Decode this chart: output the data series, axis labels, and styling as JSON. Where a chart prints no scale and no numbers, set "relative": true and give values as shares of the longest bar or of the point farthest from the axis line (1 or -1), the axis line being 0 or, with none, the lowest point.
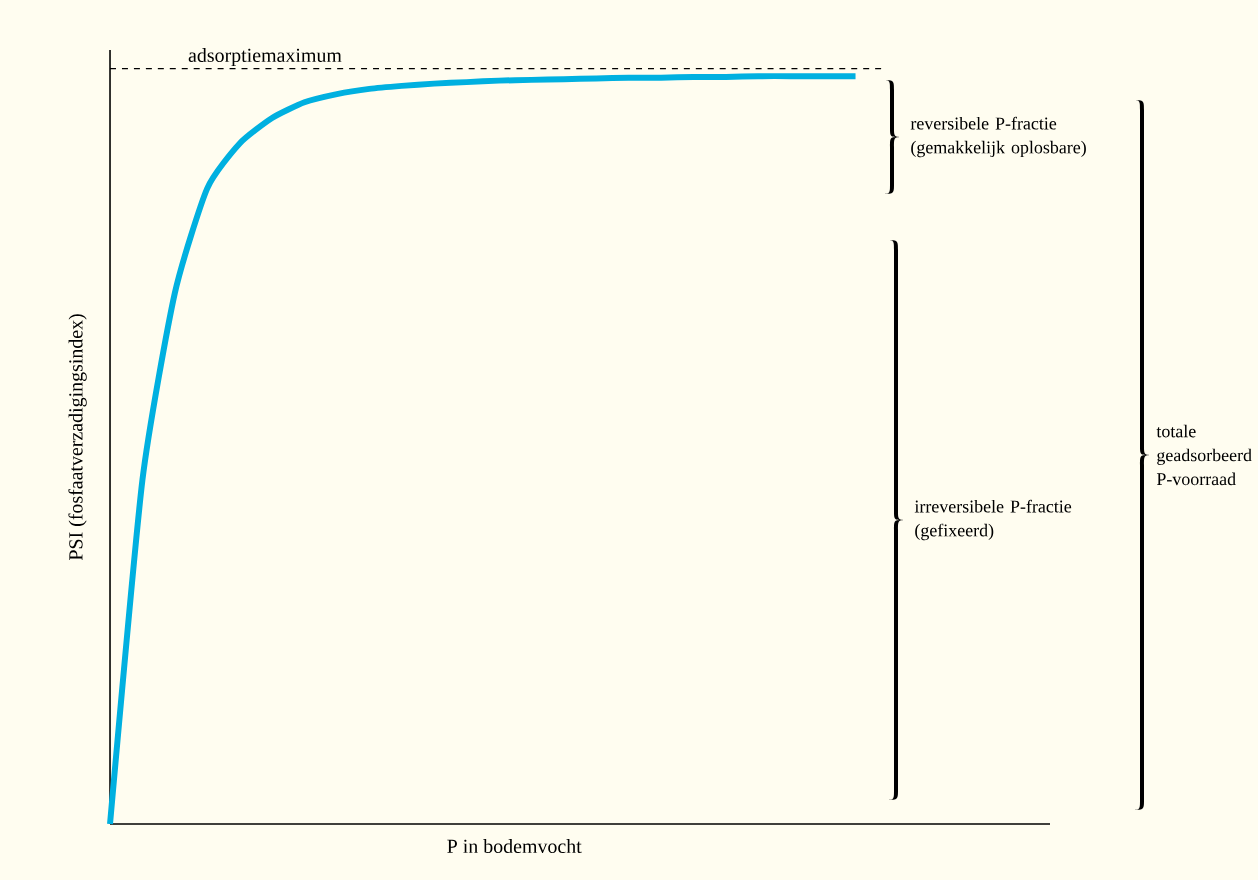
{
  "chart_data": {
    "type": "line",
    "relative": true,
    "xlabel": "P in bodemvocht",
    "ylabel": "PSI (fosfaatverzadigingsindex)",
    "categories": [
      null,
      null,
      null,
      null,
      null,
      null,
      null,
      null,
      null,
      null,
      null,
      null,
      null,
      null,
      null,
      null,
      null,
      null,
      null,
      null,
      null,
      null,
      null,
      null,
      null,
      null,
      null,
      null,
      null,
      null
    ],
    "series": [
      {
        "color": "#00b0e0",
        "values": [
          0,
          0.46,
          0.71,
          0.85,
          0.91,
          0.944,
          0.965,
          0.976,
          0.983,
          0.987,
          0.99,
          0.992,
          0.994,
          0.995,
          0.996,
          0.997,
          0.998,
          0.998,
          0.999,
          0.999,
          1,
          1,
          1,
          1,
          null,
          null,
          null,
          null,
          null,
          null
        ]
      }
    ],
    "ref_lines": [
      {
        "axis": "y",
        "value": 1.01,
        "label": "adsorptiemaximum",
        "color": "#000000",
        "line_style": "dashed"
      }
    ],
    "annotations": [
      "reversibele P-fractie (gemakkelijk oplosbare)",
      "irreversibele P-fractie (gefixeerd)",
      "totale geadsorbeerd P-voorraad"
    ],
    "grid": false,
    "marker": "none",
    "line_style": "solid"
  }
}
